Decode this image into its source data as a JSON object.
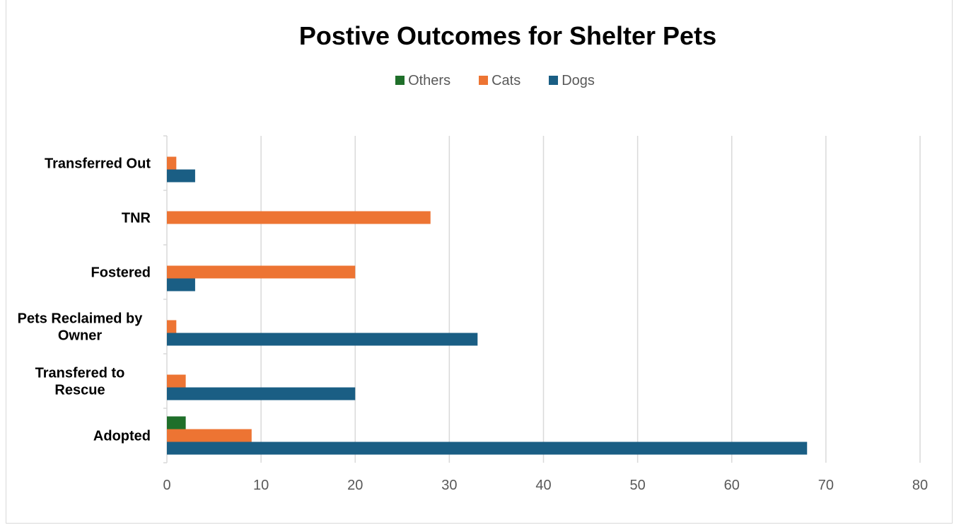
{
  "chart_data": {
    "type": "bar",
    "orientation": "horizontal",
    "title": "Postive Outcomes for Shelter Pets",
    "categories": [
      "Adopted",
      "Transfered to Rescue",
      "Pets Reclaimed by Owner",
      "Fostered",
      "TNR",
      "Transferred  Out"
    ],
    "category_lines": [
      [
        "Adopted"
      ],
      [
        "Transfered to",
        "Rescue"
      ],
      [
        "Pets Reclaimed by",
        "Owner"
      ],
      [
        "Fostered"
      ],
      [
        "TNR"
      ],
      [
        "Transferred  Out"
      ]
    ],
    "series": [
      {
        "name": "Dogs",
        "color": "#1a5e84",
        "values": [
          68,
          20,
          33,
          3,
          0,
          3
        ]
      },
      {
        "name": "Cats",
        "color": "#ed7433",
        "values": [
          9,
          2,
          1,
          20,
          28,
          1
        ]
      },
      {
        "name": "Others",
        "color": "#1f6f2a",
        "values": [
          2,
          0,
          0,
          0,
          0,
          0
        ]
      }
    ],
    "legend_order": [
      "Others",
      "Cats",
      "Dogs"
    ],
    "legend_position": "top",
    "xlim": [
      0,
      80
    ],
    "xticks": [
      0,
      10,
      20,
      30,
      40,
      50,
      60,
      70,
      80
    ],
    "xlabel": "",
    "ylabel": "",
    "grid": "vertical"
  }
}
